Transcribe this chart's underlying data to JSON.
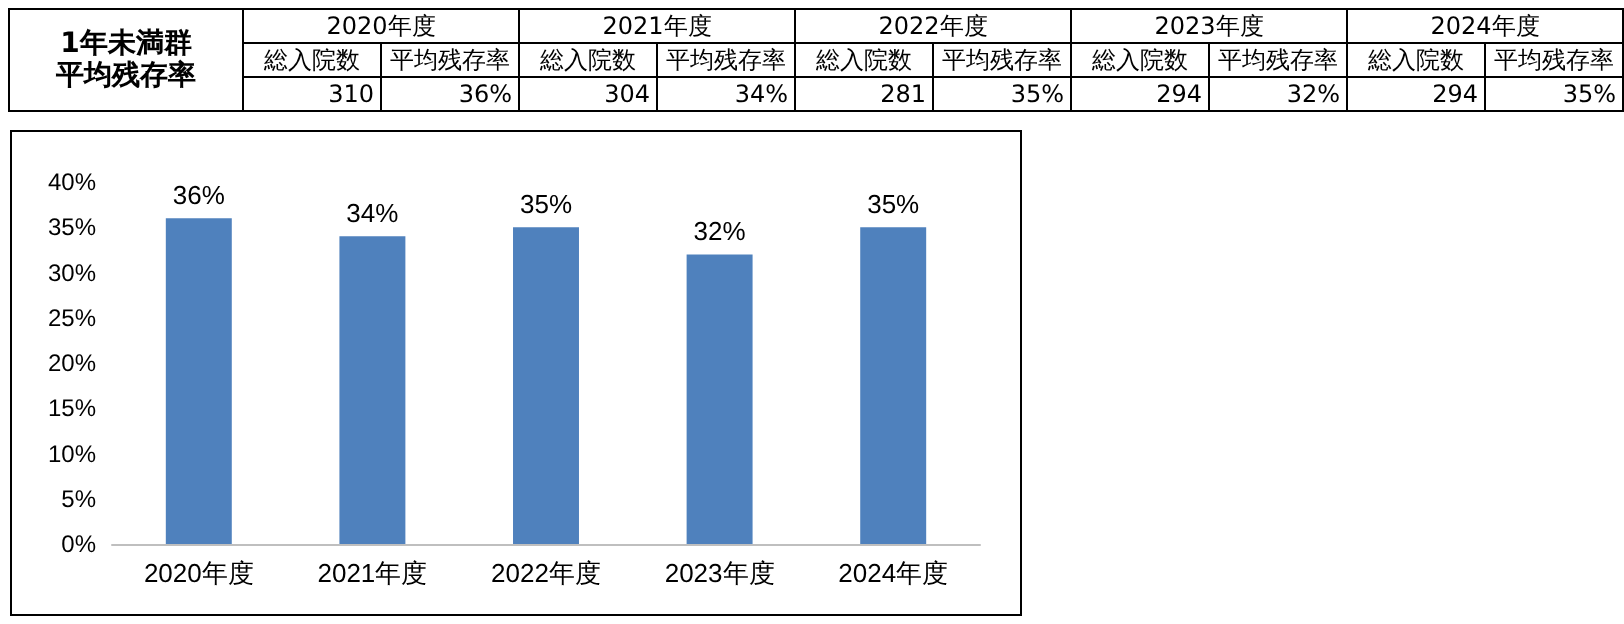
{
  "chart_data": {
    "type": "bar",
    "title": "1年未満群",
    "subtitle": "平均残存率",
    "categories": [
      "2020年度",
      "2021年度",
      "2022年度",
      "2023年度",
      "2024年度"
    ],
    "values": [
      36,
      34,
      35,
      32,
      35
    ],
    "color": "#4f81bd",
    "value_labels": [
      "36%",
      "34%",
      "35%",
      "32%",
      "35%"
    ],
    "annotations": [
      "総入院数",
      "平均残存率",
      "310",
      "304",
      "281",
      "294",
      "294"
    ],
    "ylim": [
      0,
      40
    ],
    "yticks": [
      {
        "value": 0,
        "label": "0%"
      },
      {
        "value": 5,
        "label": "5%"
      },
      {
        "value": 10,
        "label": "10%"
      },
      {
        "value": 15,
        "label": "15%"
      },
      {
        "value": 20,
        "label": "20%"
      },
      {
        "value": 25,
        "label": "25%"
      },
      {
        "value": 30,
        "label": "30%"
      },
      {
        "value": 35,
        "label": "35%"
      },
      {
        "value": 40,
        "label": "40%"
      }
    ],
    "grid": false
  }
}
